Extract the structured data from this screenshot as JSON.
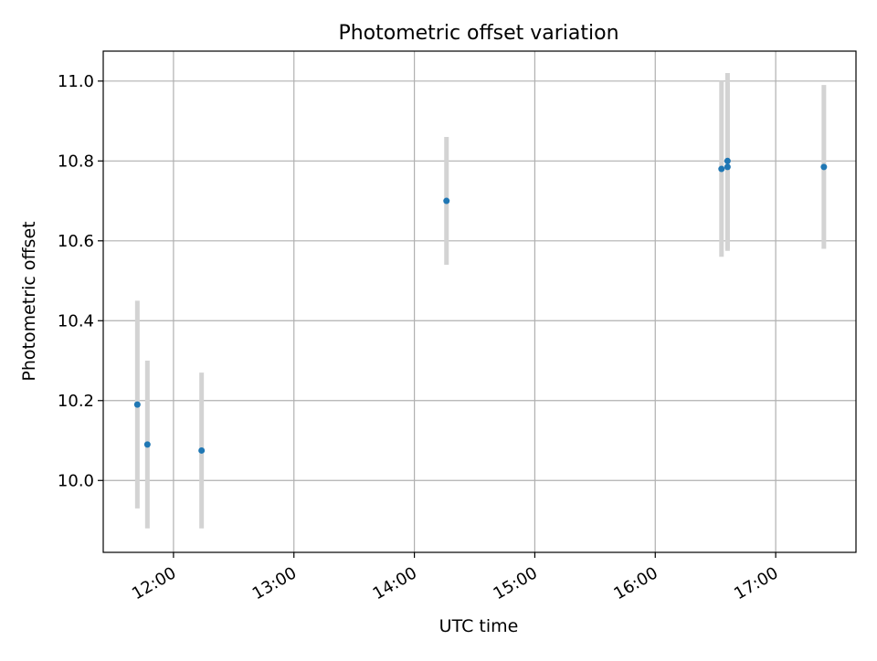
{
  "chart_data": {
    "type": "scatter",
    "title": "Photometric offset variation",
    "xlabel": "UTC time",
    "ylabel": "Photometric offset",
    "x_unit": "UTC time of day",
    "xlim": [
      "11:25",
      "17:40"
    ],
    "ylim": [
      9.82,
      11.075
    ],
    "x_ticks": [
      "12:00",
      "13:00",
      "14:00",
      "15:00",
      "16:00",
      "17:00"
    ],
    "y_ticks": [
      10.0,
      10.2,
      10.4,
      10.6,
      10.8,
      11.0
    ],
    "y_tick_labels": [
      "10.0",
      "10.2",
      "10.4",
      "10.6",
      "10.8",
      "11.0"
    ],
    "grid": true,
    "legend": "none",
    "point_color": "#1f77b4",
    "errorbar_color": "#d3d3d3",
    "points": [
      {
        "x": "11:42",
        "y": 10.19,
        "low": 9.93,
        "high": 10.45
      },
      {
        "x": "11:47",
        "y": 10.09,
        "low": 9.88,
        "high": 10.3
      },
      {
        "x": "12:14",
        "y": 10.075,
        "low": 9.88,
        "high": 10.27
      },
      {
        "x": "14:16",
        "y": 10.7,
        "low": 10.54,
        "high": 10.86
      },
      {
        "x": "16:33",
        "y": 10.78,
        "low": 10.56,
        "high": 11.0
      },
      {
        "x": "16:36",
        "y": 10.785,
        "low": 10.575,
        "high": 10.995
      },
      {
        "x": "16:36",
        "y": 10.8,
        "low": 10.58,
        "high": 11.02
      },
      {
        "x": "17:24",
        "y": 10.785,
        "low": 10.58,
        "high": 10.99
      }
    ]
  }
}
